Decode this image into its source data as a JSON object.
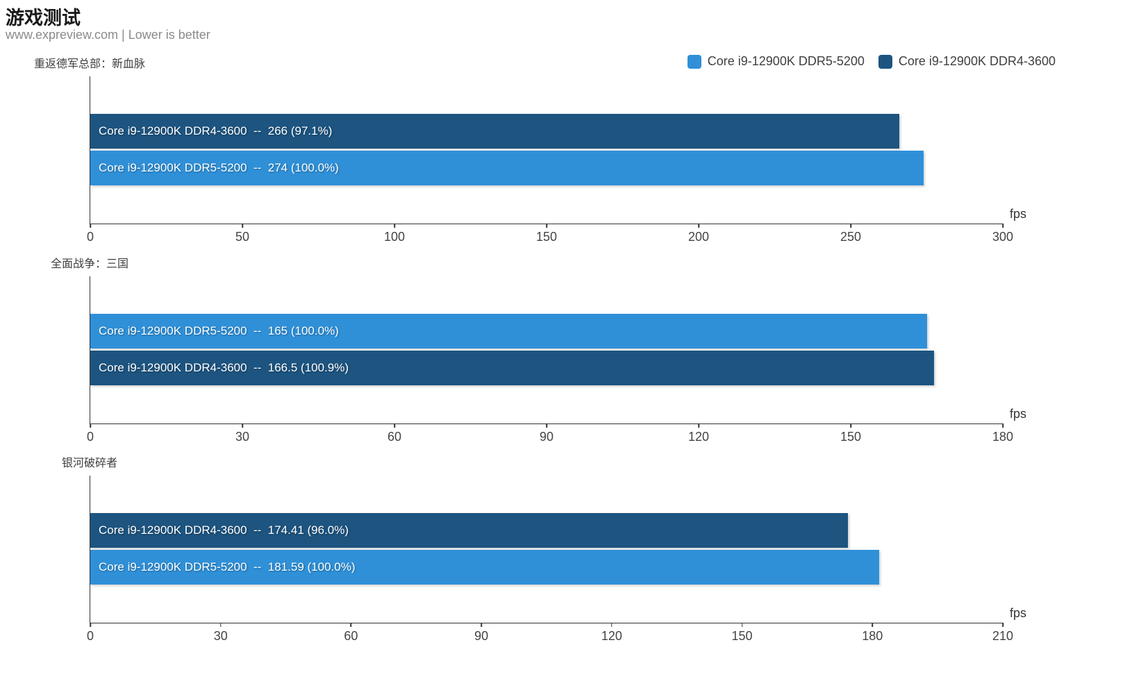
{
  "header": {
    "title": "游戏测试",
    "subtitle": "www.expreview.com | Lower is better"
  },
  "legend": [
    {
      "label": "Core i9-12900K DDR5-5200",
      "color": "#2f90d8"
    },
    {
      "label": "Core i9-12900K DDR4-3600",
      "color": "#1d5480"
    }
  ],
  "colors": {
    "ddr5": "#2f90d8",
    "ddr4": "#1d5480"
  },
  "chart_data": [
    {
      "type": "bar",
      "title": "重返德军总部：新血脉",
      "xlabel": "fps",
      "xlim": [
        0,
        300
      ],
      "xticks": [
        0,
        50,
        100,
        150,
        200,
        250,
        300
      ],
      "bars": [
        {
          "series": "Core i9-12900K DDR4-3600",
          "value": 266,
          "percent": "97.1%",
          "color_key": "ddr4",
          "label": "Core i9-12900K DDR4-3600  --  266 (97.1%)"
        },
        {
          "series": "Core i9-12900K DDR5-5200",
          "value": 274,
          "percent": "100.0%",
          "color_key": "ddr5",
          "label": "Core i9-12900K DDR5-5200  --  274 (100.0%)"
        }
      ]
    },
    {
      "type": "bar",
      "title": "全面战争：三国",
      "xlabel": "fps",
      "xlim": [
        0,
        180
      ],
      "xticks": [
        0,
        30,
        60,
        90,
        120,
        150,
        180
      ],
      "bars": [
        {
          "series": "Core i9-12900K DDR5-5200",
          "value": 165,
          "percent": "100.0%",
          "color_key": "ddr5",
          "label": "Core i9-12900K DDR5-5200  --  165 (100.0%)"
        },
        {
          "series": "Core i9-12900K DDR4-3600",
          "value": 166.5,
          "percent": "100.9%",
          "color_key": "ddr4",
          "label": "Core i9-12900K DDR4-3600  --  166.5 (100.9%)"
        }
      ]
    },
    {
      "type": "bar",
      "title": "银河破碎者",
      "xlabel": "fps",
      "xlim": [
        0,
        210
      ],
      "xticks": [
        0,
        30,
        60,
        90,
        120,
        150,
        180,
        210
      ],
      "bars": [
        {
          "series": "Core i9-12900K DDR4-3600",
          "value": 174.41,
          "percent": "96.0%",
          "color_key": "ddr4",
          "label": "Core i9-12900K DDR4-3600  --  174.41 (96.0%)"
        },
        {
          "series": "Core i9-12900K DDR5-5200",
          "value": 181.59,
          "percent": "100.0%",
          "color_key": "ddr5",
          "label": "Core i9-12900K DDR5-5200  --  181.59 (100.0%)"
        }
      ]
    }
  ]
}
